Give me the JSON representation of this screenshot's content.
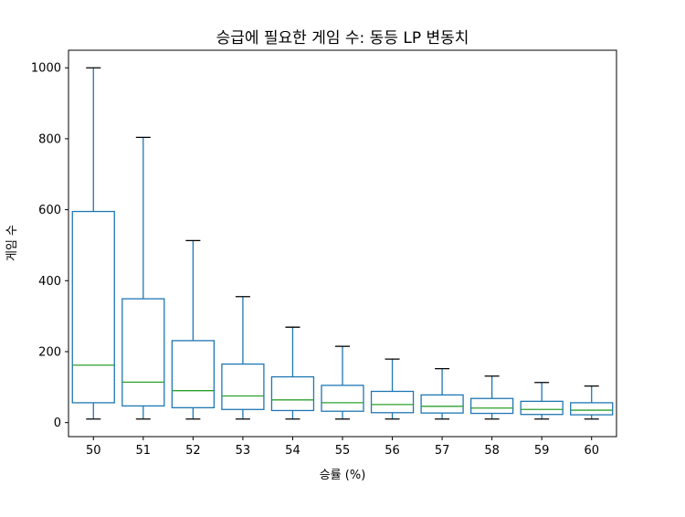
{
  "chart_data": {
    "type": "box",
    "title": "승급에 필요한 게임 수: 동등 LP 변동치",
    "xlabel": "승률 (%)",
    "ylabel": "게임 수",
    "ylim": [
      -39.5,
      1049.5
    ],
    "yticks": [
      0,
      200,
      400,
      600,
      800,
      1000
    ],
    "grid": false,
    "categories": [
      "50",
      "51",
      "52",
      "53",
      "54",
      "55",
      "56",
      "57",
      "58",
      "59",
      "60"
    ],
    "boxes": [
      {
        "whislo": 10,
        "q1": 56,
        "med": 162,
        "q3": 595,
        "whishi": 1000
      },
      {
        "whislo": 10,
        "q1": 47,
        "med": 114,
        "q3": 349,
        "whishi": 804
      },
      {
        "whislo": 10,
        "q1": 42,
        "med": 90,
        "q3": 231,
        "whishi": 513
      },
      {
        "whislo": 10,
        "q1": 37,
        "med": 75,
        "q3": 165,
        "whishi": 355
      },
      {
        "whislo": 10,
        "q1": 34,
        "med": 64,
        "q3": 129,
        "whishi": 269
      },
      {
        "whislo": 10,
        "q1": 32,
        "med": 56,
        "q3": 105,
        "whishi": 215
      },
      {
        "whislo": 10,
        "q1": 28,
        "med": 51,
        "q3": 88,
        "whishi": 179
      },
      {
        "whislo": 10,
        "q1": 27,
        "med": 46,
        "q3": 78,
        "whishi": 152
      },
      {
        "whislo": 10,
        "q1": 26,
        "med": 41,
        "q3": 68,
        "whishi": 131
      },
      {
        "whislo": 10,
        "q1": 23,
        "med": 37,
        "q3": 60,
        "whishi": 113
      },
      {
        "whislo": 10,
        "q1": 22,
        "med": 35,
        "q3": 56,
        "whishi": 103
      }
    ],
    "colors": {
      "box": "#1f77b4",
      "median": "#2ca02c",
      "cap": "#000000"
    }
  }
}
